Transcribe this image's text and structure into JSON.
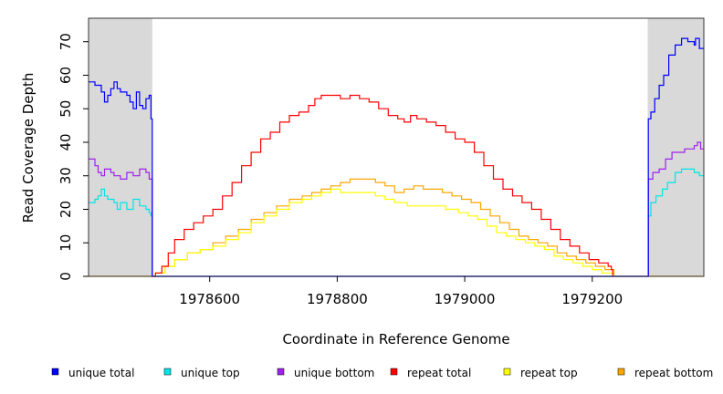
{
  "chart_data": {
    "type": "line",
    "xlabel": "Coordinate in Reference Genome",
    "ylabel": "Read Coverage Depth",
    "xlim": [
      1978410,
      1979375
    ],
    "ylim": [
      0,
      77
    ],
    "x_ticks": [
      1978600,
      1978800,
      1979000,
      1979200
    ],
    "x_tick_labels": [
      "1978600",
      "1978800",
      "1979000",
      "1979200"
    ],
    "y_ticks": [
      0,
      10,
      20,
      30,
      40,
      50,
      60,
      70
    ],
    "y_tick_labels": [
      "0",
      "10",
      "20",
      "30",
      "40",
      "50",
      "60",
      "70"
    ],
    "shaded_regions": [
      [
        1978410,
        1978510
      ],
      [
        1979287,
        1979375
      ]
    ],
    "colors": {
      "unique_total": "#0000ff",
      "unique_top": "#00e5e5",
      "unique_bottom": "#a020f0",
      "repeat_total": "#ff0000",
      "repeat_top": "#ffff00",
      "repeat_bottom": "#ffa500",
      "shade": "#d9d9d9"
    },
    "legend": [
      {
        "label": "unique total",
        "color": "#0000ff"
      },
      {
        "label": "unique top",
        "color": "#00e5e5"
      },
      {
        "label": "unique bottom",
        "color": "#a020f0"
      },
      {
        "label": "repeat total",
        "color": "#ff0000"
      },
      {
        "label": "repeat top",
        "color": "#ffff00"
      },
      {
        "label": "repeat bottom",
        "color": "#ffa500"
      }
    ],
    "series": [
      {
        "key": "unique_total",
        "color": "#0000ff",
        "points": [
          [
            1978410,
            58
          ],
          [
            1978420,
            57
          ],
          [
            1978430,
            55
          ],
          [
            1978435,
            52
          ],
          [
            1978440,
            54
          ],
          [
            1978445,
            56
          ],
          [
            1978450,
            58
          ],
          [
            1978455,
            56
          ],
          [
            1978460,
            55
          ],
          [
            1978470,
            54
          ],
          [
            1978475,
            52
          ],
          [
            1978480,
            50
          ],
          [
            1978485,
            55
          ],
          [
            1978490,
            51
          ],
          [
            1978495,
            50
          ],
          [
            1978500,
            53
          ],
          [
            1978505,
            54
          ],
          [
            1978508,
            47
          ],
          [
            1978510,
            0
          ],
          [
            1979287,
            0
          ],
          [
            1979288,
            47
          ],
          [
            1979292,
            49
          ],
          [
            1979298,
            53
          ],
          [
            1979305,
            57
          ],
          [
            1979312,
            60
          ],
          [
            1979320,
            66
          ],
          [
            1979330,
            69
          ],
          [
            1979340,
            71
          ],
          [
            1979350,
            70
          ],
          [
            1979360,
            69
          ],
          [
            1979362,
            71
          ],
          [
            1979368,
            68
          ],
          [
            1979375,
            68
          ]
        ]
      },
      {
        "key": "unique_top",
        "color": "#00e5e5",
        "points": [
          [
            1978410,
            22
          ],
          [
            1978420,
            23
          ],
          [
            1978425,
            24
          ],
          [
            1978430,
            26
          ],
          [
            1978435,
            24
          ],
          [
            1978440,
            23
          ],
          [
            1978450,
            22
          ],
          [
            1978455,
            20
          ],
          [
            1978460,
            22
          ],
          [
            1978470,
            20
          ],
          [
            1978480,
            23
          ],
          [
            1978490,
            21
          ],
          [
            1978500,
            20
          ],
          [
            1978505,
            19
          ],
          [
            1978508,
            18
          ],
          [
            1978510,
            0
          ],
          [
            1979287,
            0
          ],
          [
            1979288,
            18
          ],
          [
            1979292,
            22
          ],
          [
            1979300,
            24
          ],
          [
            1979310,
            26
          ],
          [
            1979318,
            28
          ],
          [
            1979330,
            31
          ],
          [
            1979340,
            32
          ],
          [
            1979350,
            32
          ],
          [
            1979360,
            31
          ],
          [
            1979368,
            30
          ],
          [
            1979375,
            30
          ]
        ]
      },
      {
        "key": "unique_bottom",
        "color": "#a020f0",
        "points": [
          [
            1978410,
            35
          ],
          [
            1978420,
            33
          ],
          [
            1978425,
            31
          ],
          [
            1978430,
            30
          ],
          [
            1978435,
            32
          ],
          [
            1978445,
            31
          ],
          [
            1978450,
            30
          ],
          [
            1978460,
            29
          ],
          [
            1978470,
            31
          ],
          [
            1978480,
            30
          ],
          [
            1978490,
            32
          ],
          [
            1978500,
            31
          ],
          [
            1978505,
            29
          ],
          [
            1978508,
            29
          ],
          [
            1978510,
            0
          ],
          [
            1979287,
            0
          ],
          [
            1979288,
            29
          ],
          [
            1979295,
            31
          ],
          [
            1979305,
            32
          ],
          [
            1979315,
            35
          ],
          [
            1979325,
            37
          ],
          [
            1979335,
            37
          ],
          [
            1979345,
            38
          ],
          [
            1979360,
            39
          ],
          [
            1979365,
            40
          ],
          [
            1979370,
            38
          ],
          [
            1979375,
            38
          ]
        ]
      },
      {
        "key": "repeat_total",
        "color": "#ff0000",
        "points": [
          [
            1978510,
            0
          ],
          [
            1978515,
            1
          ],
          [
            1978525,
            3
          ],
          [
            1978535,
            7
          ],
          [
            1978545,
            11
          ],
          [
            1978560,
            14
          ],
          [
            1978575,
            16
          ],
          [
            1978590,
            18
          ],
          [
            1978605,
            20
          ],
          [
            1978620,
            24
          ],
          [
            1978635,
            28
          ],
          [
            1978650,
            33
          ],
          [
            1978665,
            37
          ],
          [
            1978680,
            41
          ],
          [
            1978695,
            43
          ],
          [
            1978710,
            46
          ],
          [
            1978725,
            48
          ],
          [
            1978740,
            49
          ],
          [
            1978755,
            51
          ],
          [
            1978765,
            53
          ],
          [
            1978775,
            54
          ],
          [
            1978790,
            54
          ],
          [
            1978805,
            53
          ],
          [
            1978820,
            54
          ],
          [
            1978835,
            53
          ],
          [
            1978850,
            52
          ],
          [
            1978865,
            50
          ],
          [
            1978880,
            48
          ],
          [
            1978895,
            47
          ],
          [
            1978905,
            46
          ],
          [
            1978915,
            48
          ],
          [
            1978925,
            47
          ],
          [
            1978940,
            46
          ],
          [
            1978955,
            45
          ],
          [
            1978970,
            43
          ],
          [
            1978985,
            41
          ],
          [
            1979000,
            40
          ],
          [
            1979015,
            37
          ],
          [
            1979030,
            33
          ],
          [
            1979045,
            29
          ],
          [
            1979060,
            26
          ],
          [
            1979075,
            24
          ],
          [
            1979090,
            22
          ],
          [
            1979105,
            20
          ],
          [
            1979120,
            17
          ],
          [
            1979135,
            14
          ],
          [
            1979150,
            11
          ],
          [
            1979165,
            9
          ],
          [
            1979180,
            7
          ],
          [
            1979195,
            5
          ],
          [
            1979210,
            4
          ],
          [
            1979225,
            3
          ],
          [
            1979230,
            2
          ],
          [
            1979232,
            0
          ]
        ]
      },
      {
        "key": "repeat_top",
        "color": "#ffff00",
        "points": [
          [
            1978510,
            0
          ],
          [
            1978515,
            1
          ],
          [
            1978530,
            3
          ],
          [
            1978545,
            5
          ],
          [
            1978565,
            7
          ],
          [
            1978585,
            8
          ],
          [
            1978605,
            9
          ],
          [
            1978625,
            11
          ],
          [
            1978645,
            13
          ],
          [
            1978665,
            16
          ],
          [
            1978685,
            18
          ],
          [
            1978705,
            20
          ],
          [
            1978725,
            22
          ],
          [
            1978745,
            23
          ],
          [
            1978760,
            24
          ],
          [
            1978775,
            25
          ],
          [
            1978790,
            26
          ],
          [
            1978805,
            25
          ],
          [
            1978820,
            25
          ],
          [
            1978840,
            25
          ],
          [
            1978860,
            24
          ],
          [
            1978875,
            23
          ],
          [
            1978890,
            22
          ],
          [
            1978910,
            21
          ],
          [
            1978930,
            21
          ],
          [
            1978950,
            21
          ],
          [
            1978970,
            20
          ],
          [
            1978990,
            19
          ],
          [
            1979005,
            18
          ],
          [
            1979020,
            17
          ],
          [
            1979035,
            15
          ],
          [
            1979050,
            13
          ],
          [
            1979065,
            12
          ],
          [
            1979080,
            11
          ],
          [
            1979095,
            10
          ],
          [
            1979110,
            9
          ],
          [
            1979125,
            8
          ],
          [
            1979140,
            6
          ],
          [
            1979155,
            5
          ],
          [
            1979170,
            4
          ],
          [
            1979185,
            3
          ],
          [
            1979200,
            2
          ],
          [
            1979215,
            1
          ],
          [
            1979230,
            1
          ],
          [
            1979232,
            0
          ]
        ]
      },
      {
        "key": "repeat_bottom",
        "color": "#ffa500",
        "points": [
          [
            1978410,
            0
          ],
          [
            1978510,
            0
          ],
          [
            1978515,
            1
          ],
          [
            1978530,
            3
          ],
          [
            1978545,
            5
          ],
          [
            1978565,
            7
          ],
          [
            1978585,
            8
          ],
          [
            1978605,
            10
          ],
          [
            1978625,
            12
          ],
          [
            1978645,
            14
          ],
          [
            1978665,
            17
          ],
          [
            1978685,
            19
          ],
          [
            1978705,
            21
          ],
          [
            1978725,
            23
          ],
          [
            1978745,
            24
          ],
          [
            1978760,
            25
          ],
          [
            1978775,
            26
          ],
          [
            1978790,
            27
          ],
          [
            1978805,
            28
          ],
          [
            1978820,
            29
          ],
          [
            1978840,
            29
          ],
          [
            1978860,
            28
          ],
          [
            1978875,
            27
          ],
          [
            1978890,
            25
          ],
          [
            1978905,
            26
          ],
          [
            1978920,
            27
          ],
          [
            1978935,
            26
          ],
          [
            1978950,
            26
          ],
          [
            1978965,
            25
          ],
          [
            1978980,
            24
          ],
          [
            1978995,
            23
          ],
          [
            1979010,
            22
          ],
          [
            1979025,
            20
          ],
          [
            1979040,
            18
          ],
          [
            1979055,
            16
          ],
          [
            1979070,
            14
          ],
          [
            1979085,
            12
          ],
          [
            1979100,
            11
          ],
          [
            1979115,
            10
          ],
          [
            1979130,
            9
          ],
          [
            1979145,
            7
          ],
          [
            1979160,
            6
          ],
          [
            1979175,
            5
          ],
          [
            1979190,
            4
          ],
          [
            1979205,
            3
          ],
          [
            1979220,
            2
          ],
          [
            1979232,
            2
          ],
          [
            1979234,
            0
          ],
          [
            1979375,
            0
          ]
        ]
      }
    ]
  }
}
